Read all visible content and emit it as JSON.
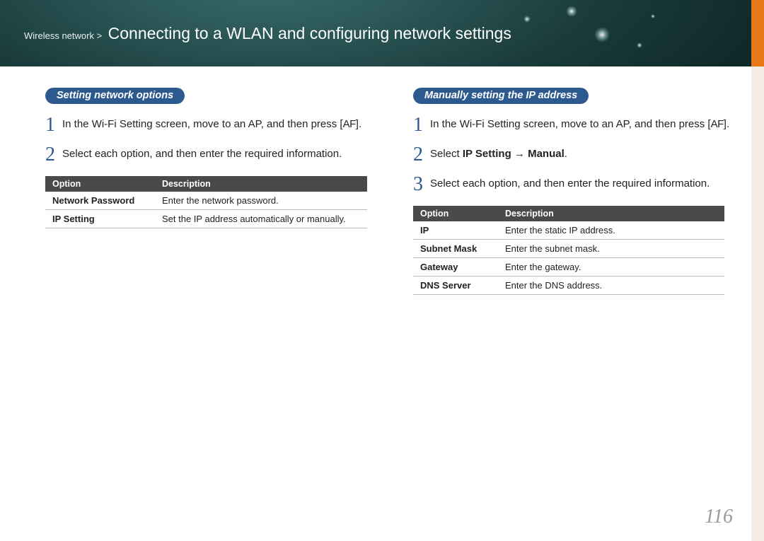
{
  "header": {
    "breadcrumb": "Wireless network >",
    "title": "Connecting to a WLAN and configuring network settings"
  },
  "left": {
    "pill": "Setting network options",
    "steps": [
      {
        "num": "1",
        "text": "In the Wi-Fi Setting screen, move to an AP, and then press [",
        "af": "AF",
        "tail": "]."
      },
      {
        "num": "2",
        "text": "Select each option, and then enter the required information."
      }
    ],
    "table": {
      "headers": [
        "Option",
        "Description"
      ],
      "rows": [
        [
          "Network Password",
          "Enter the network password."
        ],
        [
          "IP Setting",
          "Set the IP address automatically or manually."
        ]
      ],
      "col_widths": [
        "155px",
        "300px"
      ]
    }
  },
  "right": {
    "pill": "Manually setting the IP address",
    "steps": [
      {
        "num": "1",
        "text": "In the Wi-Fi Setting screen, move to an AP, and then press [",
        "af": "AF",
        "tail": "]."
      },
      {
        "num": "2",
        "pre": "Select ",
        "bold": "IP Setting → Manual",
        "post": "."
      },
      {
        "num": "3",
        "text": "Select each option, and then enter the required information."
      }
    ],
    "table": {
      "headers": [
        "Option",
        "Description"
      ],
      "rows": [
        [
          "IP",
          "Enter the static IP address."
        ],
        [
          "Subnet Mask",
          "Enter the subnet mask."
        ],
        [
          "Gateway",
          "Enter the gateway."
        ],
        [
          "DNS Server",
          "Enter the DNS address."
        ]
      ],
      "col_widths": [
        "120px",
        "320px"
      ]
    }
  },
  "page_number": "116",
  "colors": {
    "pill_bg": "#2c5a8e",
    "step_num": "#2c5a8e",
    "th_bg": "#4a4a4a",
    "orange": "#e87817"
  }
}
